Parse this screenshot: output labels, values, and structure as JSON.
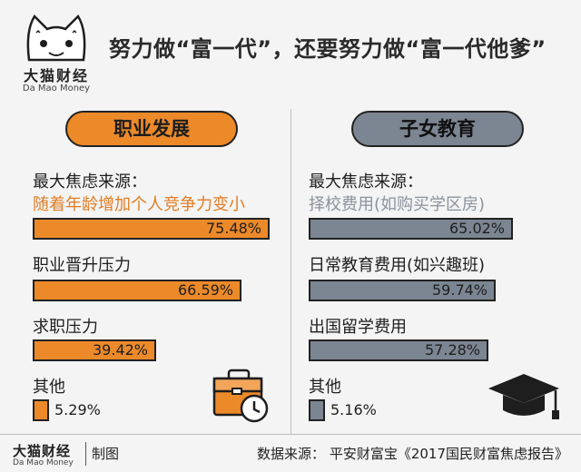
{
  "brand": {
    "name_cn": "大猫财经",
    "name_en": "Da Mao Money"
  },
  "headline": "努力做“富一代”，还要努力做“富一代他爹”",
  "chart_data": [
    {
      "type": "bar",
      "title": "职业发展",
      "color": "#ec8a2a",
      "items": [
        {
          "label": "最大焦虑来源：",
          "sublabel": "随着年龄增加个人竞争力变小",
          "value": 75.48,
          "display": "75.48%"
        },
        {
          "label": "职业晋升压力",
          "value": 66.59,
          "display": "66.59%"
        },
        {
          "label": "求职压力",
          "value": 39.42,
          "display": "39.42%"
        },
        {
          "label": "其他",
          "value": 5.29,
          "display": "5.29%"
        }
      ]
    },
    {
      "type": "bar",
      "title": "子女教育",
      "color": "#7c8592",
      "items": [
        {
          "label": "最大焦虑来源：",
          "sublabel": "择校费用(如购买学区房)",
          "value": 65.02,
          "display": "65.02%"
        },
        {
          "label": "日常教育费用(如兴趣班)",
          "value": 59.74,
          "display": "59.74%"
        },
        {
          "label": "出国留学费用",
          "value": 57.28,
          "display": "57.28%"
        },
        {
          "label": "其他",
          "value": 5.16,
          "display": "5.16%"
        }
      ]
    }
  ],
  "icons": {
    "left": "briefcase-clock-icon",
    "right": "graduation-cap-icon"
  },
  "footer": {
    "brand_cn": "大猫财经",
    "brand_en": "Da Mao Money",
    "credit": "制图",
    "source": "数据来源：  平安财富宝《2017国民财富焦虑报告》"
  }
}
